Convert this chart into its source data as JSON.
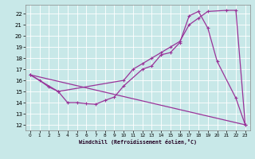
{
  "xlabel": "Windchill (Refroidissement éolien,°C)",
  "background_color": "#c8e8e8",
  "grid_color": "#ffffff",
  "line_color": "#993399",
  "xlim": [
    -0.5,
    23.5
  ],
  "ylim": [
    11.5,
    22.8
  ],
  "yticks": [
    12,
    13,
    14,
    15,
    16,
    17,
    18,
    19,
    20,
    21,
    22
  ],
  "xticks": [
    0,
    1,
    2,
    3,
    4,
    5,
    6,
    7,
    8,
    9,
    10,
    11,
    12,
    13,
    14,
    15,
    16,
    17,
    18,
    19,
    20,
    21,
    22,
    23
  ],
  "line1_x": [
    0,
    1,
    2,
    3,
    4,
    5,
    6,
    7,
    8,
    9,
    10,
    12,
    13,
    14,
    15,
    16,
    17,
    18,
    19,
    20,
    22,
    23
  ],
  "line1_y": [
    16.5,
    16.0,
    15.4,
    15.0,
    14.0,
    14.0,
    13.9,
    13.85,
    14.2,
    14.5,
    15.5,
    17.0,
    17.3,
    18.3,
    18.5,
    19.4,
    21.8,
    22.2,
    20.7,
    17.7,
    14.4,
    12.0
  ],
  "line2_x": [
    0,
    3,
    10,
    11,
    12,
    13,
    14,
    15,
    16,
    17,
    18,
    19,
    21,
    22,
    23
  ],
  "line2_y": [
    16.5,
    15.0,
    16.0,
    17.0,
    17.5,
    18.0,
    18.5,
    19.0,
    19.5,
    21.0,
    21.6,
    22.2,
    22.3,
    22.3,
    12.0
  ],
  "line3_x": [
    0,
    23
  ],
  "line3_y": [
    16.5,
    12.0
  ],
  "markersize": 3,
  "linewidth": 0.9
}
